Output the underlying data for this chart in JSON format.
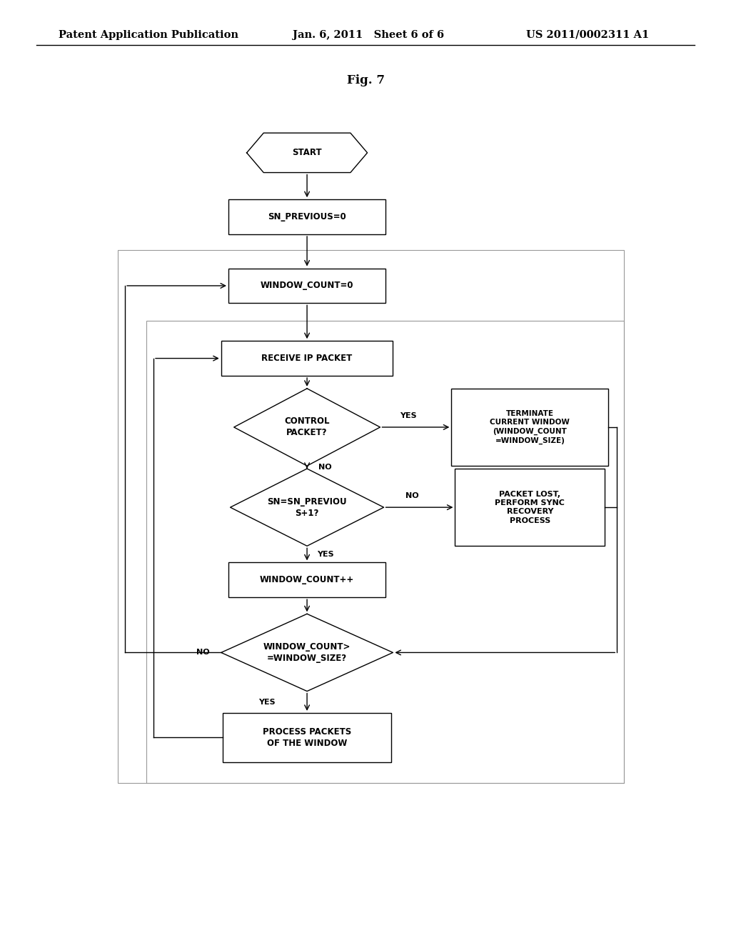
{
  "bg_color": "#ffffff",
  "header_left": "Patent Application Publication",
  "header_mid": "Jan. 6, 2011   Sheet 6 of 6",
  "header_right": "US 2011/0002311 A1",
  "fig_label": "Fig. 7",
  "font_size_header": 10.5,
  "font_size_nodes": 8.5,
  "font_size_fig": 12,
  "font_size_label": 8
}
